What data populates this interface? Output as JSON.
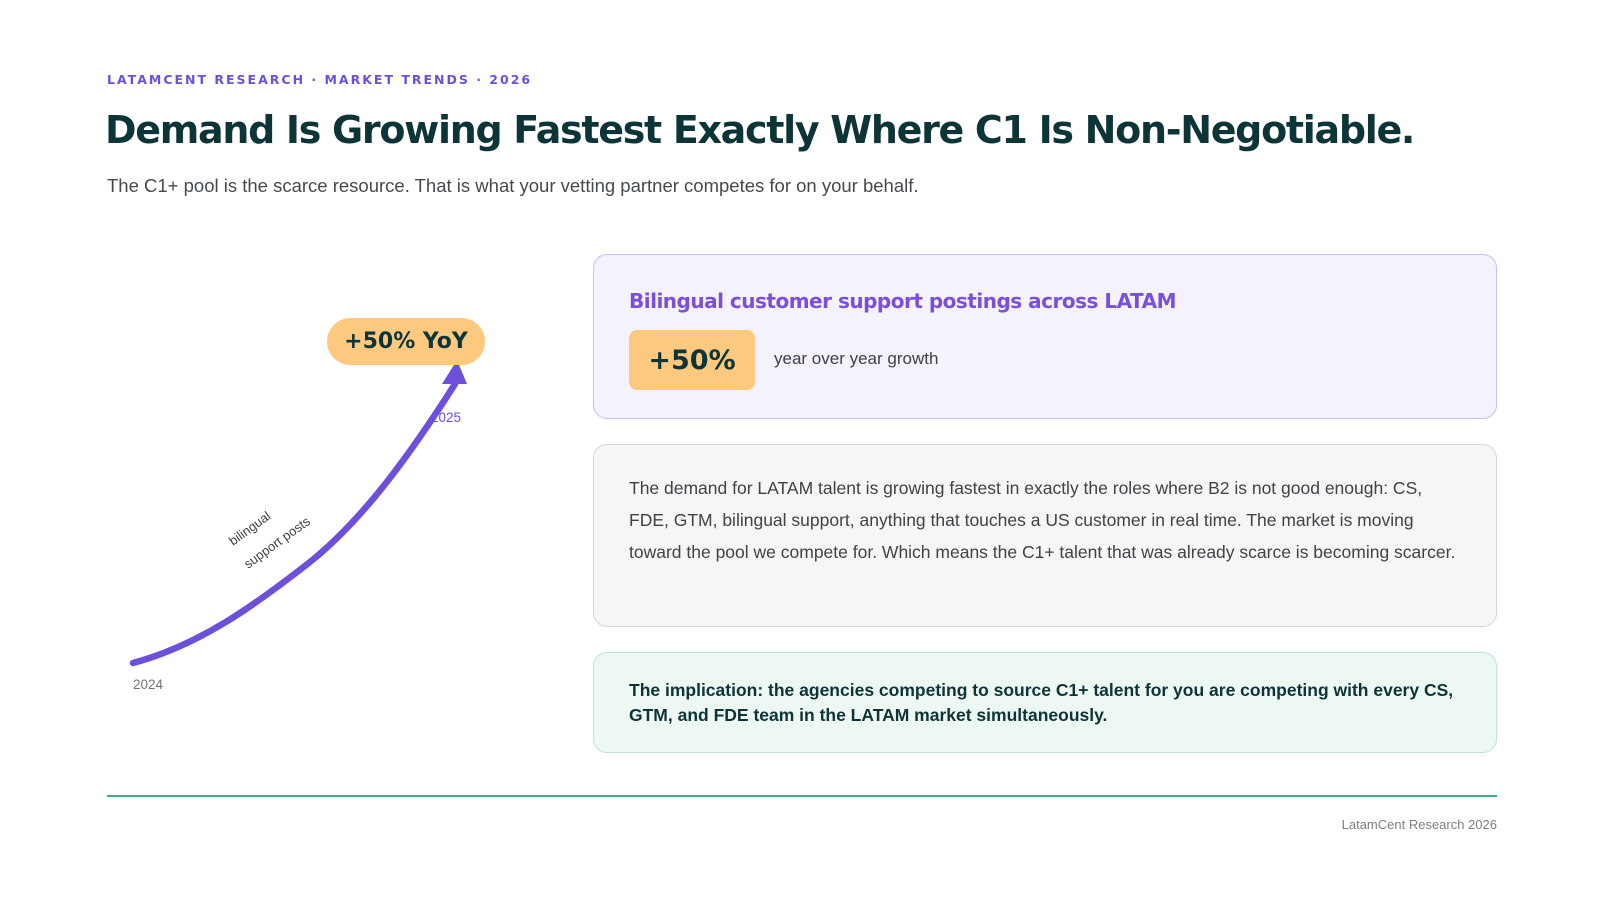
{
  "header": {
    "eyebrow": "LATAMCENT RESEARCH · MARKET TRENDS · 2026",
    "title": "Demand Is Growing Fastest Exactly Where C1 Is Non-Negotiable.",
    "subtitle": "The C1+ pool is the scarce resource. That is what your vetting partner competes for on your behalf."
  },
  "chart_data": {
    "type": "line",
    "x": [
      "2024",
      "2025"
    ],
    "series": [
      {
        "name": "bilingual support posts",
        "values": [
          100,
          150
        ]
      }
    ],
    "annotation": "+50% YoY",
    "title": "",
    "xlabel": "",
    "ylabel": "",
    "line_label_line1": "bilingual",
    "line_label_line2": "support posts",
    "start_label": "2024",
    "end_label": "2025",
    "color": "#6d4fdc",
    "grid": false
  },
  "stat_card": {
    "title": "Bilingual customer support postings across LATAM",
    "value": "+50%",
    "caption": "year over year growth"
  },
  "body_card": {
    "text": "The demand for LATAM talent is growing fastest in exactly the roles where B2 is not good enough: CS, FDE, GTM, bilingual support, anything that touches a US customer in real time. The market is moving toward the pool we compete for. Which means the C1+ talent that was already scarce is becoming scarcer."
  },
  "implication_card": {
    "text": "The implication: the agencies competing to source C1+ talent for you are competing with every CS, GTM, and FDE team in the LATAM market simultaneously."
  },
  "footer": {
    "text": "LatamCent Research 2026"
  },
  "colors": {
    "brand_purple": "#6d4fdc",
    "heading_dark": "#0d3437",
    "accent_orange": "#fdc97f",
    "accent_green": "#3fae80"
  }
}
